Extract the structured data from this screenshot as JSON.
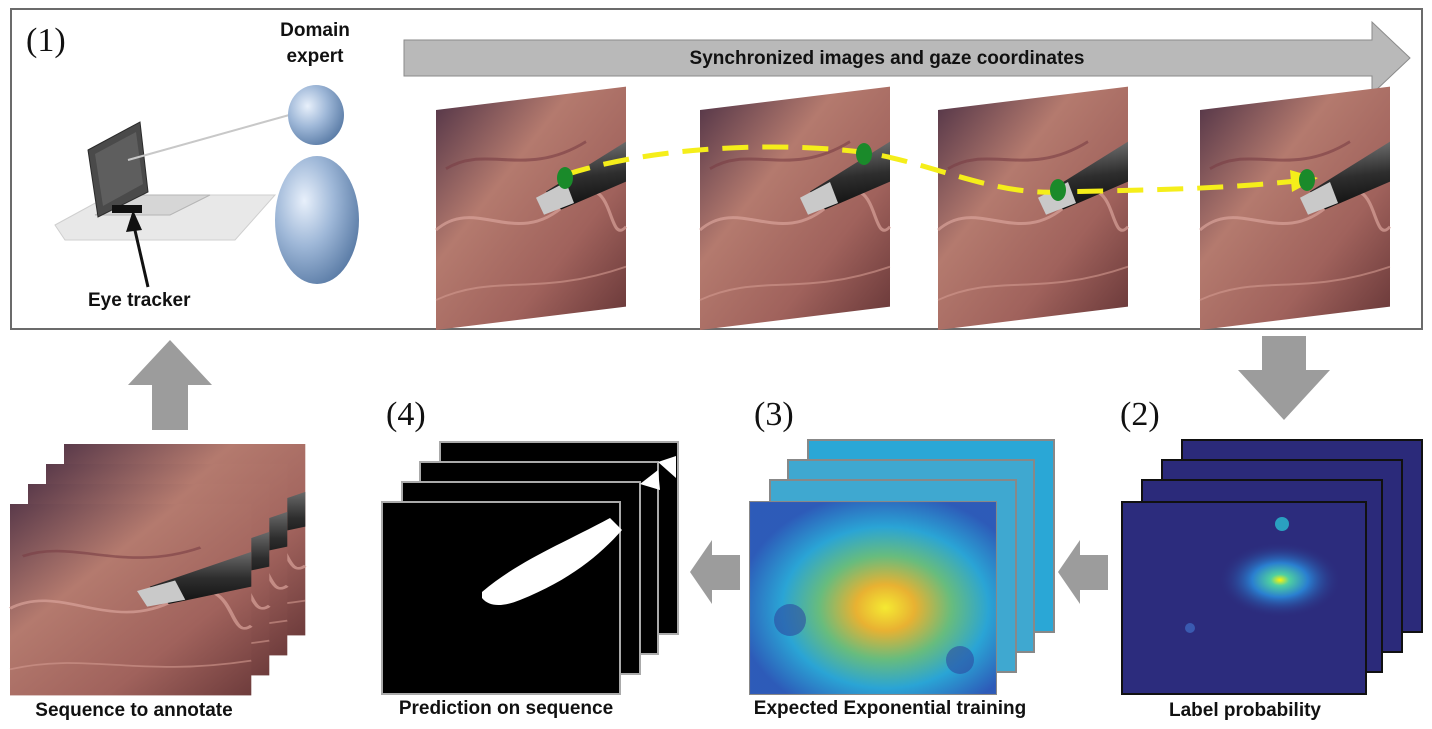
{
  "stage1": {
    "number": "(1)"
  },
  "stage2": {
    "number": "(2)"
  },
  "stage3": {
    "number": "(3)"
  },
  "stage4": {
    "number": "(4)"
  },
  "labels": {
    "domain_expert_line1": "Domain",
    "domain_expert_line2": "expert",
    "eye_tracker": "Eye tracker",
    "sync_arrow": "Synchronized images and gaze coordinates",
    "label_probability": "Label probability",
    "expected_training": "Expected Exponential training",
    "prediction": "Prediction on sequence",
    "sequence": "Sequence to annotate"
  },
  "colors": {
    "gaze_path": "#f5ee1a",
    "gaze_point": "#1a8a2a",
    "flow_arrow": "#9c9c9c",
    "tissue": "#a86a62",
    "probability_bg": "#2b2a7a",
    "heatmap_mid": "#2aa7d6",
    "heatmap_hot": "#f2c22a",
    "mask_fg": "#ffffff",
    "mask_bg": "#000000"
  },
  "icons": [
    "laptop-eye-tracker-icon",
    "person-silhouette-icon"
  ]
}
